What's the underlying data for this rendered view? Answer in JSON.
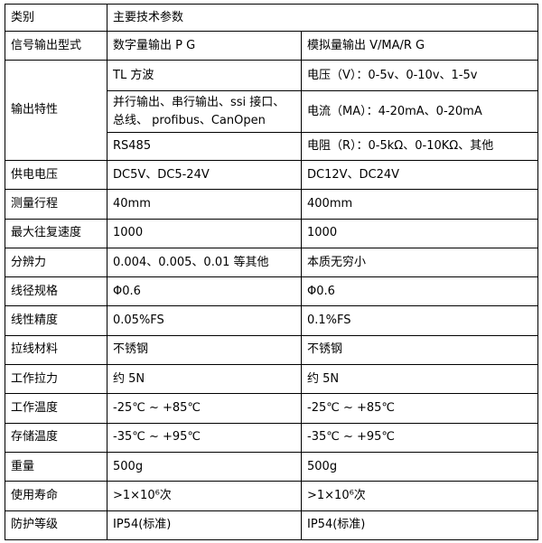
{
  "table": {
    "header": [
      "类别",
      "主要技术参数"
    ],
    "signal": [
      "信号输出型式",
      "数字量输出 P G",
      "模拟量输出 V/MA/R G"
    ],
    "output": {
      "label": "输出特性",
      "rows": [
        [
          "TL 方波",
          "电压（V）：0-5v、0-10v、1-5v"
        ],
        [
          "并行输出、串行输出、ssi 接口、总线、 profibus、CanOpen",
          "电流（MA）：4-20mA、0-20mA"
        ],
        [
          "RS485",
          "电阻（R）：0-5kΩ、0-10KΩ、其他"
        ]
      ]
    },
    "rows": [
      [
        "供电电压",
        "DC5V、DC5-24V",
        "DC12V、DC24V"
      ],
      [
        "测量行程",
        "40mm",
        "400mm"
      ],
      [
        "最大往复速度",
        "1000",
        "1000"
      ],
      [
        "分辨力",
        "0.004、0.005、0.01 等其他",
        "本质无穷小"
      ],
      [
        "线径规格",
        "Φ0.6",
        "Φ0.6"
      ],
      [
        "线性精度",
        "0.05%FS",
        "0.1%FS"
      ],
      [
        "拉线材料",
        "不锈钢",
        "不锈钢"
      ],
      [
        "工作拉力",
        "约 5N",
        "约 5N"
      ],
      [
        "工作温度",
        "-25℃ ~ +85℃",
        "-25℃ ~ +85℃"
      ],
      [
        "存储温度",
        "-35℃ ~ +95℃",
        "-35℃ ~ +95℃"
      ],
      [
        "重量",
        "500g",
        "500g"
      ],
      [
        "使用寿命",
        ">1×10⁶次",
        ">1×10⁶次"
      ],
      [
        "防护等级",
        "IP54(标准)",
        "IP54(标准)"
      ]
    ]
  }
}
